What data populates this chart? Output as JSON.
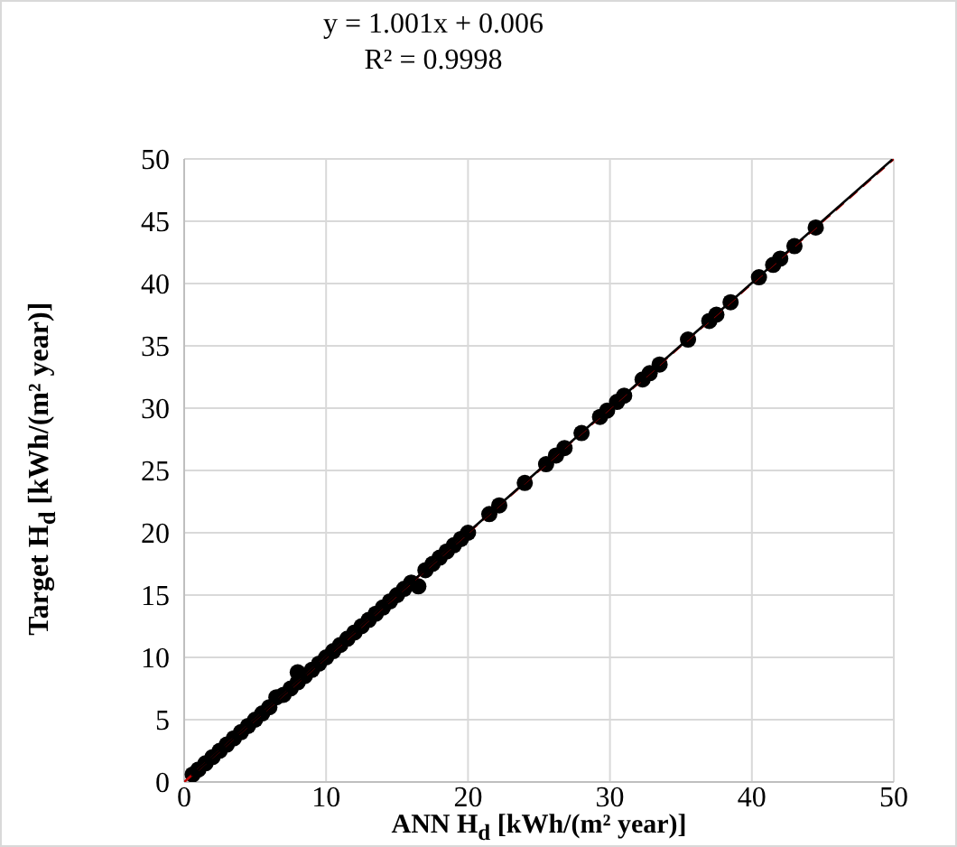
{
  "chart_data": {
    "type": "scatter",
    "xlabel": "ANN H$_{d}$ [kWh/(m² year)]",
    "ylabel": "Target H$_{d}$ [kWh/(m² year)]",
    "annotations": [
      "y = 1.001x + 0.006",
      "R² = 0.9998"
    ],
    "xlim": [
      0,
      50
    ],
    "ylim": [
      0,
      50
    ],
    "xticks": [
      0,
      10,
      20,
      30,
      40,
      50
    ],
    "yticks": [
      0,
      5,
      10,
      15,
      20,
      25,
      30,
      35,
      40,
      45,
      50
    ],
    "grid": true,
    "marker": "circle",
    "series": [
      {
        "type": "scatter",
        "color": "#000000",
        "x": [
          0.6,
          1,
          1.5,
          2,
          2.5,
          3,
          3.5,
          4,
          4.5,
          5,
          5.5,
          6,
          6.5,
          7,
          7.5,
          8,
          8,
          8.5,
          9,
          9.5,
          10,
          10.5,
          11,
          11.5,
          12,
          12.5,
          13,
          13.5,
          14,
          14.5,
          15,
          15.5,
          16,
          16.5,
          17,
          17.5,
          18,
          18.5,
          19,
          19.5,
          20,
          21.5,
          22.2,
          24,
          25.5,
          26.2,
          26.8,
          28,
          29.3,
          29.8,
          30.5,
          31,
          32.3,
          32.8,
          33.5,
          35.5,
          37,
          37.5,
          38.5,
          40.5,
          41.5,
          42,
          43,
          44.5
        ],
        "values": [
          0.6,
          1,
          1.5,
          2,
          2.5,
          3,
          3.5,
          4,
          4.5,
          5,
          5.5,
          6,
          6.8,
          7,
          7.5,
          8,
          8.8,
          8.5,
          9,
          9.5,
          10,
          10.5,
          11,
          11.5,
          12,
          12.5,
          13,
          13.5,
          14,
          14.5,
          15,
          15.5,
          16,
          15.7,
          17,
          17.5,
          18,
          18.5,
          19,
          19.5,
          20,
          21.5,
          22.2,
          24,
          25.5,
          26.2,
          26.8,
          28,
          29.3,
          29.8,
          30.5,
          31,
          32.3,
          32.8,
          33.5,
          35.5,
          37,
          37.5,
          38.5,
          40.5,
          41.5,
          42,
          43,
          44.5
        ]
      },
      {
        "type": "line",
        "color": "#c00000",
        "line_style": "dashed",
        "marker": "none",
        "x": [
          0,
          50
        ],
        "values": [
          0,
          50
        ]
      },
      {
        "type": "line",
        "color": "#000000",
        "line_style": "solid",
        "marker": "none",
        "x": [
          0.5,
          49.9
        ],
        "values": [
          0.51,
          49.96
        ]
      }
    ]
  }
}
